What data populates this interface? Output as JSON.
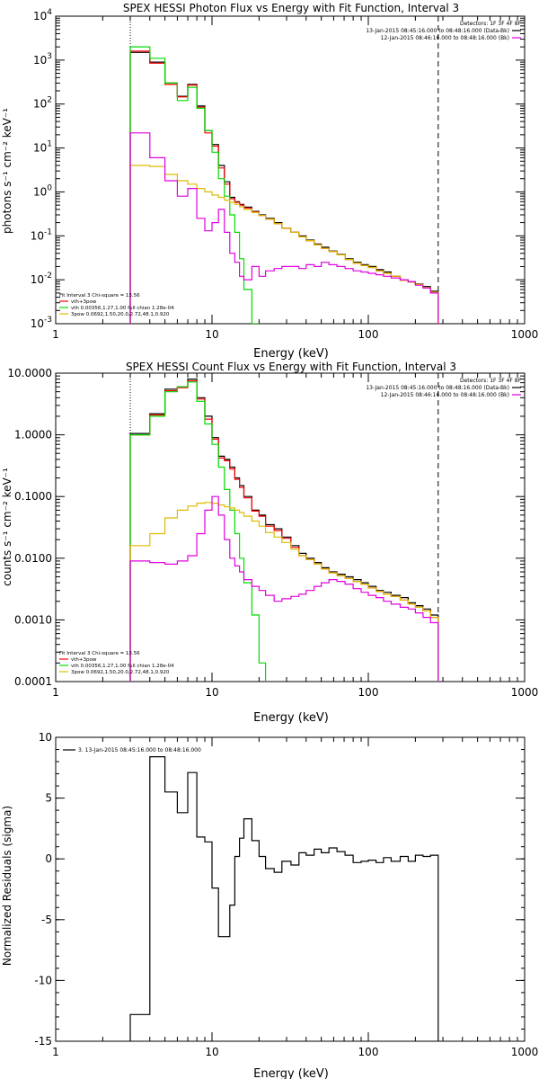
{
  "chart_data": [
    {
      "type": "line",
      "title": "SPEX HESSI Photon Flux vs Energy with Fit Function, Interval 3",
      "xlabel": "Energy (keV)",
      "ylabel": "photons s⁻¹ cm⁻² keV⁻¹",
      "xscale": "log",
      "yscale": "log",
      "xlim": [
        1,
        1000
      ],
      "ylim": [
        0.001,
        10000
      ],
      "x_ticks": [
        1,
        10,
        100,
        1000
      ],
      "x_tick_labels": [
        "1",
        "10",
        "100",
        "1000"
      ],
      "y_ticks": [
        0.001,
        0.01,
        0.1,
        1,
        10,
        100,
        1000,
        10000
      ],
      "y_tick_labels": [
        {
          "base": "10",
          "exp": "-3"
        },
        {
          "base": "10",
          "exp": "-2"
        },
        {
          "base": "10",
          "exp": "-1"
        },
        {
          "base": "10",
          "exp": "0"
        },
        {
          "base": "10",
          "exp": "1"
        },
        {
          "base": "10",
          "exp": "2"
        },
        {
          "base": "10",
          "exp": "3"
        },
        {
          "base": "10",
          "exp": "4"
        }
      ],
      "vlines": [
        {
          "x": 3,
          "style": "dotted"
        },
        {
          "x": 280,
          "style": "dashed"
        }
      ],
      "legend_top_right": [
        {
          "text": "Detectors: 1F 3F 4F 8F",
          "color": "#000000"
        },
        {
          "text": "13-Jan-2015 08:45:16.000 to 08:48:16.000 (Data-Bk)",
          "color": "#000000"
        },
        {
          "text": "12-Jan-2015 08:46:16.000 to 08:48:16.000 (Bk)",
          "color": "#e000e0"
        }
      ],
      "legend_bottom_left": [
        {
          "text": "Fit Interval 3   Chi-square = 13.56",
          "color": "#000000"
        },
        {
          "text": "vth+3pow",
          "color": "#ff0000"
        },
        {
          "text": "vth 0.00356,1.27,1.00  full chian 1.28e-04",
          "color": "#00dd00"
        },
        {
          "text": "3pow 0.0692,1.50,20.0,2.72,48.1,0.920",
          "color": "#ddbb00"
        }
      ],
      "series": [
        {
          "color": "#000000",
          "edges": [
            3,
            4,
            5,
            6,
            7,
            8,
            9,
            10,
            11,
            12,
            13,
            14,
            15,
            16,
            18,
            20,
            22,
            25,
            28,
            32,
            36,
            40,
            45,
            50,
            56,
            63,
            71,
            80,
            90,
            100,
            112,
            125,
            140,
            160,
            180,
            200,
            224,
            250,
            280
          ],
          "values": [
            1500,
            900,
            300,
            150,
            280,
            90,
            25,
            12,
            4,
            1.7,
            0.75,
            0.6,
            0.52,
            0.45,
            0.36,
            0.3,
            0.25,
            0.2,
            0.15,
            0.12,
            0.1,
            0.08,
            0.065,
            0.055,
            0.045,
            0.038,
            0.03,
            0.025,
            0.022,
            0.02,
            0.017,
            0.015,
            0.012,
            0.01,
            0.009,
            0.008,
            0.007,
            0.0055
          ]
        },
        {
          "color": "#ff0000",
          "edges": [
            3,
            4,
            5,
            6,
            7,
            8,
            9,
            10,
            11,
            12,
            13,
            14,
            15,
            16,
            18,
            20,
            22,
            25,
            28,
            32,
            36,
            40,
            45,
            50,
            56,
            63,
            71,
            80,
            90,
            100,
            112,
            125,
            140,
            160,
            180,
            200,
            224,
            250,
            280
          ],
          "values": [
            1600,
            850,
            280,
            145,
            270,
            85,
            22,
            11,
            3.5,
            1.5,
            0.7,
            0.58,
            0.5,
            0.43,
            0.35,
            0.29,
            0.24,
            0.19,
            0.15,
            0.12,
            0.095,
            0.078,
            0.063,
            0.052,
            0.044,
            0.037,
            0.029,
            0.024,
            0.021,
            0.019,
            0.016,
            0.014,
            0.012,
            0.0098,
            0.0088,
            0.0078,
            0.0066,
            0.0052
          ]
        },
        {
          "color": "#00dd00",
          "edges": [
            3,
            4,
            5,
            6,
            7,
            8,
            9,
            10,
            11,
            12,
            13,
            14,
            15,
            16,
            18,
            20
          ],
          "values": [
            2000,
            1100,
            300,
            120,
            240,
            80,
            25,
            8,
            2,
            0.8,
            0.3,
            0.12,
            0.03,
            0.006,
            0.001
          ]
        },
        {
          "color": "#ddbb00",
          "edges": [
            3,
            4,
            5,
            6,
            7,
            8,
            9,
            10,
            11,
            12,
            13,
            14,
            15,
            16,
            18,
            20,
            22,
            25,
            28,
            32,
            36,
            40,
            45,
            50,
            56,
            63,
            71,
            80,
            90,
            100,
            112,
            125,
            140,
            160,
            180,
            200,
            224,
            250,
            280
          ],
          "values": [
            4,
            3.8,
            2.5,
            1.8,
            1.5,
            1.2,
            1,
            0.85,
            0.75,
            0.65,
            0.58,
            0.52,
            0.46,
            0.4,
            0.34,
            0.29,
            0.24,
            0.19,
            0.15,
            0.12,
            0.095,
            0.078,
            0.063,
            0.052,
            0.044,
            0.037,
            0.029,
            0.024,
            0.021,
            0.019,
            0.016,
            0.014,
            0.012,
            0.0098,
            0.0088,
            0.0078,
            0.0066,
            0.0052
          ]
        },
        {
          "color": "#e000e0",
          "edges": [
            3,
            4,
            5,
            6,
            7,
            8,
            9,
            10,
            11,
            12,
            13,
            14,
            15,
            16,
            18,
            20,
            22,
            25,
            28,
            32,
            36,
            40,
            45,
            50,
            56,
            63,
            71,
            80,
            90,
            100,
            112,
            125,
            140,
            160,
            180,
            200,
            224,
            250,
            280
          ],
          "values": [
            22,
            6,
            1.8,
            0.8,
            1.2,
            0.25,
            0.13,
            0.2,
            0.4,
            0.12,
            0.04,
            0.025,
            0.012,
            0.01,
            0.02,
            0.012,
            0.016,
            0.018,
            0.02,
            0.02,
            0.018,
            0.022,
            0.02,
            0.025,
            0.022,
            0.02,
            0.018,
            0.016,
            0.015,
            0.014,
            0.013,
            0.012,
            0.011,
            0.01,
            0.009,
            0.0075,
            0.0065,
            0.005
          ]
        }
      ]
    },
    {
      "type": "line",
      "title": "SPEX HESSI Count Flux vs Energy with Fit Function, Interval 3",
      "xlabel": "Energy (keV)",
      "ylabel": "counts s⁻¹ cm⁻² keV⁻¹",
      "xscale": "log",
      "yscale": "log",
      "xlim": [
        1,
        1000
      ],
      "ylim": [
        0.0001,
        10
      ],
      "x_ticks": [
        1,
        10,
        100,
        1000
      ],
      "x_tick_labels": [
        "1",
        "10",
        "100",
        "1000"
      ],
      "y_ticks": [
        0.0001,
        0.001,
        0.01,
        0.1,
        1,
        10
      ],
      "y_tick_labels": [
        "0.0001",
        "0.0010",
        "0.0100",
        "0.1000",
        "1.0000",
        "10.0000"
      ],
      "vlines": [
        {
          "x": 3,
          "style": "dotted"
        },
        {
          "x": 280,
          "style": "dashed"
        }
      ],
      "legend_top_right": [
        {
          "text": "Detectors: 1F 3F 4F 8F",
          "color": "#000000"
        },
        {
          "text": "13-Jan-2015 08:45:16.000 to 08:48:16.000 (Data-Bk)",
          "color": "#000000"
        },
        {
          "text": "12-Jan-2015 08:46:16.000 to 08:48:16.000 (Bk)",
          "color": "#e000e0"
        }
      ],
      "legend_bottom_left": [
        {
          "text": "Fit Interval 3   Chi-square = 13.56",
          "color": "#000000"
        },
        {
          "text": "vth+3pow",
          "color": "#ff0000"
        },
        {
          "text": "vth 0.00356,1.27,1.00  full chian 1.28e-04",
          "color": "#00dd00"
        },
        {
          "text": "3pow 0.0692,1.50,20.0,2.72,48.1,0.920",
          "color": "#ddbb00"
        }
      ],
      "series": [
        {
          "color": "#000000",
          "edges": [
            3,
            4,
            5,
            6,
            7,
            8,
            9,
            10,
            11,
            12,
            13,
            14,
            15,
            16,
            18,
            20,
            22,
            25,
            28,
            32,
            36,
            40,
            45,
            50,
            56,
            63,
            71,
            80,
            90,
            100,
            112,
            125,
            140,
            160,
            180,
            200,
            224,
            250,
            280
          ],
          "values": [
            1.05,
            2.2,
            5.5,
            6,
            8,
            4,
            2,
            0.9,
            0.45,
            0.4,
            0.3,
            0.2,
            0.15,
            0.1,
            0.06,
            0.05,
            0.035,
            0.03,
            0.022,
            0.016,
            0.012,
            0.01,
            0.0085,
            0.007,
            0.006,
            0.0055,
            0.005,
            0.0045,
            0.004,
            0.0035,
            0.003,
            0.0028,
            0.0025,
            0.0023,
            0.0019,
            0.0017,
            0.0015,
            0.0012
          ]
        },
        {
          "color": "#ff0000",
          "edges": [
            3,
            4,
            5,
            6,
            7,
            8,
            9,
            10,
            11,
            12,
            13,
            14,
            15,
            16,
            18,
            20,
            22,
            25,
            28,
            32,
            36,
            40,
            45,
            50,
            56,
            63,
            71,
            80,
            90,
            100,
            112,
            125,
            140,
            160,
            180,
            200,
            224,
            250,
            280
          ],
          "values": [
            1,
            2.1,
            5.2,
            5.8,
            7.5,
            3.8,
            1.8,
            0.85,
            0.42,
            0.38,
            0.28,
            0.19,
            0.14,
            0.095,
            0.058,
            0.048,
            0.033,
            0.028,
            0.021,
            0.015,
            0.011,
            0.0095,
            0.008,
            0.0067,
            0.0058,
            0.0052,
            0.0047,
            0.0042,
            0.0038,
            0.0033,
            0.0029,
            0.0026,
            0.0024,
            0.0021,
            0.0018,
            0.0016,
            0.0014,
            0.0011
          ]
        },
        {
          "color": "#00dd00",
          "edges": [
            3,
            4,
            5,
            6,
            7,
            8,
            9,
            10,
            11,
            12,
            13,
            14,
            15,
            16,
            18,
            20,
            22
          ],
          "values": [
            1,
            2,
            5,
            6,
            7.2,
            3.5,
            1.5,
            0.7,
            0.3,
            0.13,
            0.06,
            0.025,
            0.01,
            0.004,
            0.0012,
            0.0002
          ]
        },
        {
          "color": "#ddbb00",
          "edges": [
            3,
            4,
            5,
            6,
            7,
            8,
            9,
            10,
            11,
            12,
            13,
            14,
            15,
            16,
            18,
            20,
            22,
            25,
            28,
            32,
            36,
            40,
            45,
            50,
            56,
            63,
            71,
            80,
            90,
            100,
            112,
            125,
            140,
            160,
            180,
            200,
            224,
            250,
            280
          ],
          "values": [
            0.016,
            0.025,
            0.045,
            0.06,
            0.07,
            0.078,
            0.08,
            0.078,
            0.073,
            0.068,
            0.065,
            0.06,
            0.055,
            0.048,
            0.04,
            0.033,
            0.026,
            0.022,
            0.018,
            0.014,
            0.011,
            0.0095,
            0.008,
            0.0067,
            0.0058,
            0.0052,
            0.0047,
            0.0042,
            0.0038,
            0.0033,
            0.0029,
            0.0026,
            0.0024,
            0.0021,
            0.0018,
            0.0016,
            0.0014,
            0.0011
          ]
        },
        {
          "color": "#e000e0",
          "edges": [
            3,
            4,
            5,
            6,
            7,
            8,
            9,
            10,
            11,
            12,
            13,
            14,
            15,
            16,
            18,
            20,
            22,
            25,
            28,
            32,
            36,
            40,
            45,
            50,
            56,
            63,
            71,
            80,
            90,
            100,
            112,
            125,
            140,
            160,
            180,
            200,
            224,
            250,
            280
          ],
          "values": [
            0.009,
            0.0085,
            0.008,
            0.009,
            0.011,
            0.025,
            0.06,
            0.1,
            0.05,
            0.02,
            0.01,
            0.0075,
            0.006,
            0.0045,
            0.0035,
            0.003,
            0.0025,
            0.002,
            0.0022,
            0.0024,
            0.0026,
            0.003,
            0.0035,
            0.004,
            0.0045,
            0.0042,
            0.0038,
            0.0032,
            0.0028,
            0.0025,
            0.0023,
            0.002,
            0.0018,
            0.0016,
            0.0015,
            0.0013,
            0.0011,
            0.0009
          ]
        }
      ]
    },
    {
      "type": "line",
      "title": "",
      "xlabel": "Energy (keV)",
      "ylabel": "Normalized Residuals (sigma)",
      "xscale": "log",
      "yscale": "linear",
      "xlim": [
        1,
        1000
      ],
      "ylim": [
        -15,
        10
      ],
      "x_ticks": [
        1,
        10,
        100,
        1000
      ],
      "x_tick_labels": [
        "1",
        "10",
        "100",
        "1000"
      ],
      "y_ticks": [
        -15,
        -10,
        -5,
        0,
        5,
        10
      ],
      "y_tick_labels": [
        "-15",
        "-10",
        "-5",
        "0",
        "5",
        "10"
      ],
      "vlines": [],
      "legend_top_left": [
        {
          "text": "3. 13-Jan-2015 08:45:16.000 to 08:48:16.000",
          "color": "#000000"
        }
      ],
      "series": [
        {
          "color": "#000000",
          "edges": [
            3,
            4,
            5,
            6,
            7,
            8,
            9,
            10,
            11,
            12,
            13,
            14,
            15,
            16,
            18,
            20,
            22,
            25,
            28,
            32,
            36,
            40,
            45,
            50,
            56,
            63,
            71,
            80,
            90,
            100,
            112,
            125,
            140,
            160,
            180,
            200,
            224,
            250,
            280
          ],
          "values": [
            -12.8,
            8.4,
            5.5,
            3.8,
            7.1,
            1.8,
            1.4,
            -2.4,
            -6.4,
            -6.4,
            -3.8,
            0.2,
            1.7,
            3.3,
            1.5,
            0.2,
            -0.8,
            -1.1,
            -0.2,
            -0.5,
            0.5,
            0.3,
            0.8,
            0.5,
            0.9,
            0.6,
            0.3,
            -0.3,
            -0.2,
            -0.1,
            -0.3,
            0.1,
            -0.2,
            0.2,
            -0.2,
            0.3,
            0.2,
            0.3
          ],
          "drop_to": -15
        }
      ]
    }
  ]
}
